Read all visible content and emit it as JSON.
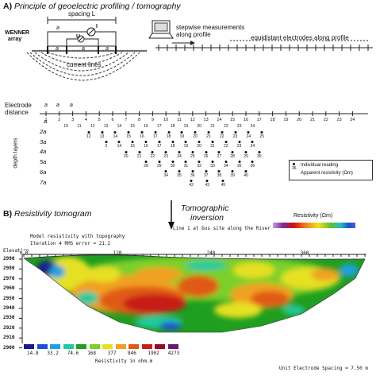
{
  "panel_a": {
    "title_letter": "A)",
    "title": "Principle of geoelectric profiling / tomography",
    "spacing_label": "spacing L",
    "wenner_label_1": "WENNER",
    "wenner_label_2": "array",
    "a_label": "a",
    "u_label": "U",
    "i_label": "I",
    "current_lines": "current lines",
    "stepwise_1": "stepwise measurements",
    "stepwise_2": "along profile",
    "equidistant": "equidistant electrodes along profile",
    "electrode_label_1": "Electrode",
    "electrode_label_2": "distance",
    "depth_layers_label": "depth layers",
    "depth_levels": [
      "a",
      "2a",
      "3a",
      "4a",
      "5a",
      "6a",
      "7a"
    ],
    "electrode_numbers": [
      "1",
      "2",
      "3",
      "4",
      "5",
      "6",
      "7",
      "8",
      "9",
      "10",
      "11",
      "12",
      "13",
      "14",
      "15",
      "16",
      "17",
      "18",
      "19",
      "20",
      "21",
      "22",
      "23",
      "24"
    ],
    "legend_number": "36",
    "legend_1": "Individual reading",
    "legend_2": "Apparent resistivity (Ωm)",
    "pseudo_levels": [
      [
        "10",
        "11",
        "12",
        "13",
        "14",
        "15",
        "16",
        "17",
        "18",
        "19",
        "20",
        "21",
        "22",
        "23",
        "24"
      ],
      [
        "12",
        "13",
        "14",
        "15",
        "16",
        "17",
        "18",
        "19",
        "20",
        "21",
        "22",
        "23",
        "24",
        "25"
      ],
      [
        "3",
        "14",
        "15",
        "16",
        "17",
        "18",
        "19",
        "20",
        "21",
        "22",
        "23",
        "24"
      ],
      [
        "20",
        "21",
        "22",
        "23",
        "24",
        "25",
        "26",
        "27",
        "28",
        "29",
        "30"
      ],
      [
        "28",
        "29",
        "30",
        "31",
        "32",
        "33",
        "34",
        "35",
        "36"
      ],
      [
        "34",
        "35",
        "36",
        "37",
        "38",
        "39",
        "40"
      ],
      [
        "42",
        "43",
        "45"
      ]
    ]
  },
  "tomo": {
    "arrow_1": "Tomographic",
    "arrow_2": "inversion",
    "section_letter": "B)",
    "section_title": "Resistivity tomogram",
    "resistivity_scale_label": "Resistivity (Ωm)",
    "line_text": "Line 1 at bus site along the River",
    "model_title": "Model resistivity with topography",
    "iteration": "Iteration 4 RMS error = 21.2",
    "elevation_label": "Elevation",
    "top_axis": [
      "0.0",
      "120",
      "240",
      "360"
    ],
    "elevations": [
      "2990",
      "2980",
      "2970",
      "2960",
      "2950",
      "2940",
      "2930",
      "2920",
      "2910",
      "2900"
    ],
    "scale_values": [
      "14.8",
      "33.2",
      "74.6",
      "168",
      "377",
      "846",
      "1902",
      "4273"
    ],
    "scale_caption": "Resistivity in ohm.m",
    "spacing_note": "Unit Electrode Spacing = 7.50 m"
  },
  "colors": {
    "scale": [
      "#1a1a8c",
      "#1f4fd6",
      "#1fa0e0",
      "#21c9a0",
      "#1f9e1f",
      "#7dcf2a",
      "#e6e020",
      "#f0a020",
      "#e05a16",
      "#c81e14",
      "#9a0a28",
      "#6a1a6a"
    ]
  }
}
